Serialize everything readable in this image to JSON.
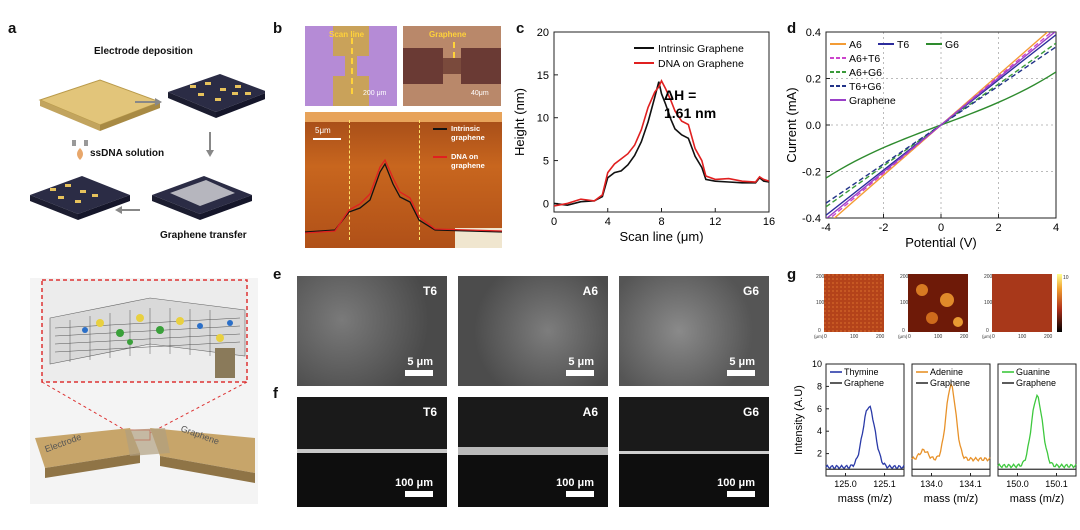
{
  "panel_labels": {
    "a": "a",
    "b": "b",
    "c": "c",
    "d": "d",
    "e": "e",
    "f": "f",
    "g": "g"
  },
  "panel_a": {
    "step1": "Electrode deposition",
    "step2": "ssDNA solution",
    "step3": "Graphene transfer",
    "label_electrode": "Electrode",
    "label_graphene": "Graphene"
  },
  "panel_b": {
    "optical_left_label": "Scan line",
    "optical_left_scale": "200 μm",
    "optical_right_label": "Graphene",
    "optical_right_scale": "40μm",
    "afm_scale": "5μm",
    "legend_intrinsic": "Intrinsic graphene",
    "legend_dna": "DNA on graphene"
  },
  "panel_e": {
    "t6": "T6",
    "a6": "A6",
    "g6": "G6",
    "scale": "5 μm"
  },
  "panel_f": {
    "t6": "T6",
    "a6": "A6",
    "g6": "G6",
    "scale": "100 μm"
  },
  "panel_g_map": {
    "ticks": [
      "0",
      "100",
      "200"
    ],
    "unit": "(μm)",
    "cbar": "10"
  },
  "chart_data": [
    {
      "id": "c",
      "type": "line",
      "xlabel": "Scan line (μm)",
      "ylabel": "Height (nm)",
      "xlim": [
        0,
        16
      ],
      "ylim": [
        -1,
        20
      ],
      "xticks": [
        0,
        4,
        8,
        12,
        16
      ],
      "yticks": [
        0,
        5,
        10,
        15,
        20
      ],
      "annotation": "ΔH = 1.61 nm",
      "series": [
        {
          "name": "Intrinsic Graphene",
          "color": "#111111",
          "x": [
            0,
            1,
            2,
            3,
            3.6,
            4,
            4.5,
            5,
            5.5,
            6,
            6.5,
            7,
            7.5,
            7.8,
            8,
            8.3,
            8.7,
            9,
            9.5,
            10,
            10.5,
            11,
            11.3,
            12,
            13,
            14,
            15,
            15.3,
            15.6,
            16
          ],
          "y": [
            0,
            -0.2,
            0.2,
            0.3,
            0.8,
            3,
            3.6,
            3.8,
            4.5,
            5.6,
            7.2,
            9.5,
            12.4,
            14.2,
            12.8,
            11.6,
            9.8,
            8.7,
            8.0,
            7.6,
            5.5,
            4.2,
            2.8,
            2.6,
            2.5,
            2.4,
            2.4,
            3.0,
            2.6,
            2.5
          ]
        },
        {
          "name": "DNA on Graphene",
          "color": "#e02020",
          "x": [
            0,
            1,
            2,
            3,
            3.6,
            4,
            4.5,
            5,
            5.5,
            6,
            6.5,
            7,
            7.5,
            7.8,
            8,
            8.3,
            8.7,
            9,
            9.5,
            10,
            10.5,
            11,
            11.3,
            12,
            13,
            14,
            15,
            15.3,
            15.6,
            16
          ],
          "y": [
            -0.3,
            0,
            0.5,
            0.3,
            1,
            3.6,
            4.6,
            5.2,
            5.8,
            6.8,
            8.6,
            11.2,
            13.0,
            13.6,
            14.3,
            13.4,
            12.0,
            10.8,
            9.6,
            9.2,
            6.4,
            5.0,
            3.2,
            2.8,
            2.9,
            2.6,
            2.5,
            3.1,
            2.8,
            2.6
          ]
        }
      ]
    },
    {
      "id": "d",
      "type": "line",
      "xlabel": "Potential (V)",
      "ylabel": "Current (mA)",
      "xlim": [
        -4,
        4
      ],
      "ylim": [
        -0.4,
        0.4
      ],
      "xticks": [
        -4,
        -2,
        0,
        2,
        4
      ],
      "yticks": [
        -0.4,
        -0.2,
        0.0,
        0.2,
        0.4
      ],
      "ytick_labels": [
        "-0.4",
        "-0.2",
        "0.0",
        "0.2",
        "0.4"
      ],
      "series": [
        {
          "name": "A6",
          "color": "#f39c35",
          "dash": "",
          "slope": 0.108
        },
        {
          "name": "T6",
          "color": "#2c2c9c",
          "dash": "",
          "slope": 0.097
        },
        {
          "name": "G6",
          "color": "#2e8b2e",
          "dash": "",
          "slope": 0.046
        },
        {
          "name": "A6+T6",
          "color": "#cc44cc",
          "dash": "5,3",
          "slope": 0.104
        },
        {
          "name": "A6+G6",
          "color": "#3a9a3a",
          "dash": "5,3",
          "slope": 0.088
        },
        {
          "name": "T6+G6",
          "color": "#223388",
          "dash": "5,3",
          "slope": 0.084
        },
        {
          "name": "Graphene",
          "color": "#9a40c8",
          "dash": "",
          "slope": 0.101
        }
      ]
    },
    {
      "id": "g",
      "type": "line",
      "ylabel": "Intensity (A.U)",
      "ylim": [
        0,
        10
      ],
      "yticks": [
        2,
        4,
        6,
        8,
        10
      ],
      "subplots": [
        {
          "xlabel": "mass (m/z)",
          "xlim": [
            124.95,
            125.15
          ],
          "xticks": [
            125.0,
            125.1
          ],
          "xtick_labels": [
            "125.0",
            "125.1"
          ],
          "series": [
            {
              "name": "Thymine",
              "color": "#2a3aa8",
              "center": 125.06,
              "height": 5.4,
              "width": 0.022,
              "base": 0.8
            },
            {
              "name": "Graphene",
              "color": "#333333",
              "flat": 0.6
            }
          ]
        },
        {
          "xlabel": "mass (m/z)",
          "xlim": [
            133.95,
            134.15
          ],
          "xticks": [
            134.0,
            134.1
          ],
          "xtick_labels": [
            "134.0",
            "134.1"
          ],
          "series": [
            {
              "name": "Adenine",
              "color": "#e8922a",
              "center": 134.05,
              "height": 6.6,
              "width": 0.018,
              "base": 1.5
            },
            {
              "name": "Graphene",
              "color": "#333333",
              "flat": 0.6
            }
          ]
        },
        {
          "xlabel": "mass (m/z)",
          "xlim": [
            149.95,
            150.15
          ],
          "xticks": [
            150.0,
            150.1
          ],
          "xtick_labels": [
            "150.0",
            "150.1"
          ],
          "series": [
            {
              "name": "Guanine",
              "color": "#3ec83e",
              "center": 150.05,
              "height": 6.2,
              "width": 0.02,
              "base": 0.9
            },
            {
              "name": "Graphene",
              "color": "#333333",
              "flat": 0.6
            }
          ]
        }
      ]
    }
  ]
}
